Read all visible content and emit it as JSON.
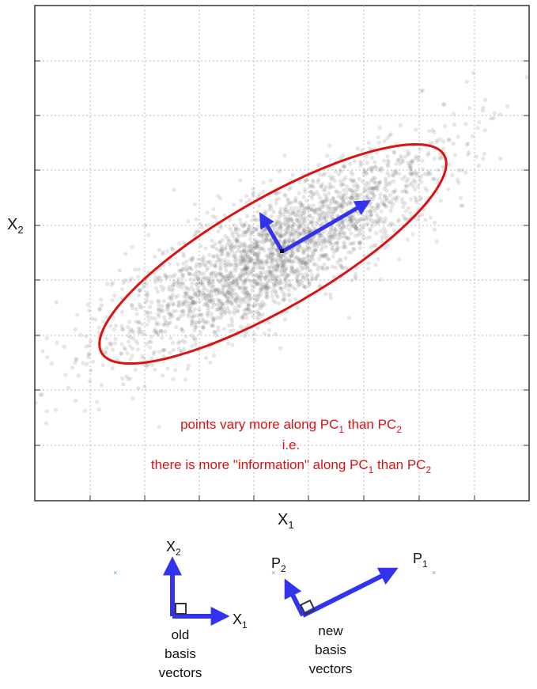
{
  "plot": {
    "xlabel": {
      "main": "X",
      "sub": "1"
    },
    "ylabel": {
      "main": "X",
      "sub": "2"
    },
    "grid": true,
    "annotation": {
      "line1": {
        "a": "points vary more along PC",
        "s1": "1",
        "b": " than PC",
        "s2": "2"
      },
      "line2": "i.e.",
      "line3": {
        "a": "there is more \"information\" along PC",
        "s1": "1",
        "b": " than PC",
        "s2": "2"
      }
    }
  },
  "old_basis": {
    "x_label": {
      "main": "X",
      "sub": "1"
    },
    "y_label": {
      "main": "X",
      "sub": "2"
    },
    "caption": [
      "old",
      "basis",
      "vectors"
    ]
  },
  "new_basis": {
    "p1_label": {
      "main": "P",
      "sub": "1"
    },
    "p2_label": {
      "main": "P",
      "sub": "2"
    },
    "caption": [
      "new",
      "basis",
      "vectors"
    ]
  },
  "colors": {
    "arrow": "#3333ee",
    "ellipse": "#dd1111",
    "annotation": "#dd1111",
    "points": "#888888",
    "marker": "#55aadd"
  }
}
